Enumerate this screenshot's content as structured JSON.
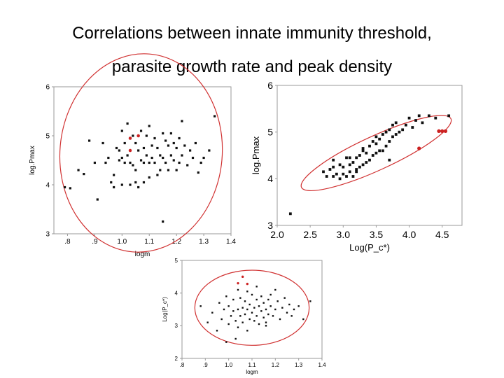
{
  "title_line1": "Correlations between innate immunity threshold,",
  "title_line2": "parasite growth rate and peak density",
  "colors": {
    "points": "#111111",
    "highlight": "#cc2222",
    "ellipse": "#d03030",
    "axes": "#999999"
  },
  "chart_data": [
    {
      "id": "logm_vs_logPmax",
      "type": "scatter",
      "title": "",
      "xlabel": "logm",
      "ylabel": "log.Pmax",
      "xlim": [
        0.75,
        1.4
      ],
      "ylim": [
        3,
        6
      ],
      "xticks": [
        0.8,
        0.9,
        1.0,
        1.1,
        1.2,
        1.3,
        1.4
      ],
      "xtick_labels": [
        ".8",
        ".9",
        "1.0",
        "1.1",
        "1.2",
        "1.3",
        "1.4"
      ],
      "yticks": [
        3,
        4,
        5,
        6
      ],
      "ytick_labels": [
        "3",
        "4",
        "5",
        "6"
      ],
      "confidence_ellipse": {
        "center": [
          1.07,
          4.65
        ],
        "x_radius": 0.33,
        "y_radius": 0.78,
        "angle_deg": -26
      },
      "series": [
        {
          "name": "points",
          "x": [
            0.79,
            0.81,
            0.84,
            0.86,
            0.88,
            0.9,
            0.91,
            0.93,
            0.94,
            0.95,
            0.96,
            0.97,
            0.97,
            0.98,
            0.99,
            0.99,
            1.0,
            1.0,
            1.0,
            1.01,
            1.01,
            1.02,
            1.02,
            1.03,
            1.03,
            1.03,
            1.04,
            1.04,
            1.05,
            1.05,
            1.05,
            1.06,
            1.06,
            1.07,
            1.07,
            1.08,
            1.08,
            1.08,
            1.09,
            1.09,
            1.1,
            1.1,
            1.1,
            1.11,
            1.11,
            1.12,
            1.12,
            1.13,
            1.13,
            1.14,
            1.14,
            1.15,
            1.15,
            1.16,
            1.16,
            1.17,
            1.17,
            1.18,
            1.18,
            1.19,
            1.19,
            1.2,
            1.2,
            1.21,
            1.21,
            1.22,
            1.22,
            1.23,
            1.24,
            1.25,
            1.26,
            1.27,
            1.28,
            1.29,
            1.3,
            1.32,
            1.34,
            1.15
          ],
          "y": [
            3.95,
            3.93,
            4.3,
            4.22,
            4.9,
            4.45,
            3.7,
            4.85,
            4.45,
            4.55,
            4.05,
            3.95,
            4.2,
            4.75,
            4.7,
            4.5,
            5.1,
            4.55,
            4.0,
            4.85,
            4.45,
            4.6,
            5.25,
            4.45,
            4.95,
            4.0,
            5.0,
            4.4,
            4.85,
            4.3,
            4.05,
            4.7,
            3.95,
            5.1,
            4.5,
            4.75,
            4.45,
            4.05,
            5.0,
            4.6,
            5.2,
            4.45,
            4.15,
            4.8,
            4.55,
            4.95,
            4.45,
            4.75,
            4.2,
            4.6,
            4.3,
            5.05,
            4.55,
            4.9,
            4.45,
            4.8,
            4.3,
            5.05,
            4.6,
            4.85,
            4.5,
            4.75,
            4.3,
            4.95,
            4.45,
            4.6,
            5.3,
            4.8,
            4.4,
            4.7,
            4.55,
            4.85,
            4.25,
            4.45,
            4.55,
            4.7,
            5.4,
            3.25
          ]
        },
        {
          "name": "highlighted",
          "x": [
            1.03,
            1.06,
            1.03
          ],
          "y": [
            4.95,
            5.0,
            4.7
          ]
        }
      ]
    },
    {
      "id": "logPc_vs_logPmax",
      "type": "scatter",
      "title": "",
      "xlabel": "Log(P_c*)",
      "ylabel": "log.Pmax",
      "xlim": [
        2.0,
        4.8
      ],
      "ylim": [
        3,
        6
      ],
      "xticks": [
        2.0,
        2.5,
        3.0,
        3.5,
        4.0,
        4.5
      ],
      "xtick_labels": [
        "2.0",
        "2.5",
        "3.0",
        "3.5",
        "4.0",
        "4.5"
      ],
      "yticks": [
        3,
        4,
        5,
        6
      ],
      "ytick_labels": [
        "3",
        "4",
        "5",
        "6"
      ],
      "confidence_ellipse": {
        "center": [
          3.5,
          4.55
        ],
        "x_radius": 1.35,
        "y_radius": 0.32,
        "angle_deg": 33
      },
      "series": [
        {
          "name": "points",
          "x": [
            2.2,
            2.7,
            2.75,
            2.8,
            2.85,
            2.85,
            2.9,
            2.95,
            2.95,
            3.0,
            3.0,
            3.05,
            3.05,
            3.1,
            3.1,
            3.15,
            3.15,
            3.2,
            3.2,
            3.25,
            3.25,
            3.3,
            3.3,
            3.35,
            3.35,
            3.4,
            3.4,
            3.45,
            3.45,
            3.5,
            3.5,
            3.55,
            3.55,
            3.6,
            3.6,
            3.65,
            3.65,
            3.7,
            3.7,
            3.75,
            3.75,
            3.8,
            3.8,
            3.85,
            3.9,
            3.95,
            4.0,
            4.05,
            4.1,
            4.15,
            4.2,
            4.3,
            4.4,
            4.6,
            3.1,
            3.3,
            3.5,
            3.7,
            2.85,
            3.2
          ],
          "y": [
            3.25,
            4.15,
            4.05,
            4.2,
            4.05,
            4.25,
            4.1,
            4.0,
            4.3,
            4.1,
            4.25,
            4.05,
            4.45,
            4.15,
            4.3,
            4.05,
            4.35,
            4.2,
            4.45,
            4.25,
            4.5,
            4.3,
            4.6,
            4.35,
            4.55,
            4.4,
            4.7,
            4.5,
            4.8,
            4.55,
            4.9,
            4.6,
            4.85,
            4.6,
            4.95,
            4.7,
            5.0,
            4.8,
            5.05,
            4.9,
            5.15,
            4.95,
            5.2,
            5.0,
            5.05,
            5.15,
            5.3,
            5.1,
            5.25,
            5.35,
            5.2,
            5.35,
            5.3,
            5.35,
            4.45,
            4.65,
            4.75,
            4.4,
            4.4,
            4.15
          ]
        },
        {
          "name": "highlighted",
          "x": [
            4.45,
            4.5,
            4.55,
            4.15
          ],
          "y": [
            5.02,
            5.02,
            5.02,
            4.65
          ]
        }
      ]
    },
    {
      "id": "logm_vs_logPc",
      "type": "scatter",
      "title": "",
      "xlabel": "logm",
      "ylabel": "Log(P_c*)",
      "xlim": [
        0.8,
        1.4
      ],
      "ylim": [
        2,
        5
      ],
      "xticks": [
        0.8,
        0.9,
        1.0,
        1.1,
        1.2,
        1.3,
        1.4
      ],
      "xtick_labels": [
        ".8",
        ".9",
        "1.0",
        "1.1",
        "1.2",
        "1.3",
        "1.4"
      ],
      "yticks": [
        2,
        3,
        4,
        5
      ],
      "ytick_labels": [
        "2",
        "3",
        "4",
        "5"
      ],
      "confidence_ellipse": {
        "center": [
          1.1,
          3.55
        ],
        "x_radius": 0.245,
        "y_radius": 1.15,
        "angle_deg": 0
      },
      "series": [
        {
          "name": "points",
          "x": [
            0.88,
            0.91,
            0.93,
            0.95,
            0.96,
            0.97,
            0.98,
            0.99,
            1.0,
            1.0,
            1.01,
            1.02,
            1.02,
            1.03,
            1.04,
            1.04,
            1.05,
            1.05,
            1.06,
            1.06,
            1.07,
            1.07,
            1.08,
            1.08,
            1.09,
            1.09,
            1.1,
            1.1,
            1.11,
            1.11,
            1.12,
            1.12,
            1.13,
            1.13,
            1.14,
            1.14,
            1.15,
            1.15,
            1.16,
            1.16,
            1.17,
            1.17,
            1.18,
            1.18,
            1.19,
            1.2,
            1.21,
            1.22,
            1.23,
            1.24,
            1.25,
            1.26,
            1.27,
            1.28,
            1.3,
            1.32,
            1.35,
            1.04,
            1.08,
            1.12,
            1.16,
            1.2,
            0.99,
            1.03
          ],
          "y": [
            3.6,
            3.1,
            3.4,
            2.85,
            3.7,
            3.2,
            3.5,
            3.9,
            3.05,
            3.6,
            3.3,
            3.8,
            3.45,
            3.15,
            4.1,
            3.5,
            3.3,
            3.85,
            3.55,
            3.1,
            3.75,
            3.35,
            4.05,
            3.5,
            3.2,
            3.65,
            3.95,
            3.4,
            3.55,
            3.15,
            3.8,
            3.3,
            3.6,
            3.05,
            3.45,
            3.9,
            3.25,
            3.7,
            3.5,
            3.1,
            3.8,
            3.35,
            3.6,
            3.95,
            3.3,
            3.5,
            3.75,
            3.2,
            3.55,
            3.85,
            3.4,
            3.65,
            3.3,
            3.5,
            3.6,
            3.2,
            3.75,
            2.95,
            2.85,
            4.2,
            3.0,
            4.1,
            2.5,
            2.6
          ]
        },
        {
          "name": "highlighted",
          "x": [
            1.04,
            1.08,
            1.06
          ],
          "y": [
            4.3,
            4.28,
            4.5
          ]
        }
      ]
    }
  ]
}
